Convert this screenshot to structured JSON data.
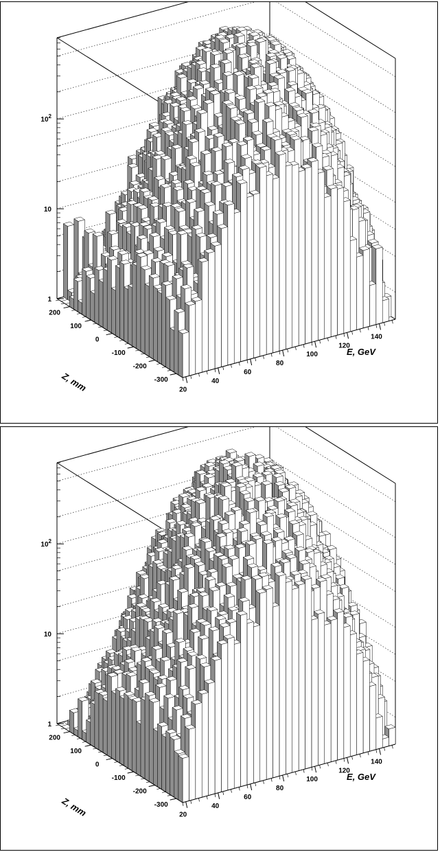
{
  "chart_data": [
    {
      "type": "lego3d",
      "x_axis": {
        "label": "E, GeV",
        "ticks": [
          "20",
          "40",
          "60",
          "80",
          "100",
          "120",
          "140"
        ],
        "range": [
          18,
          150
        ]
      },
      "y_axis": {
        "label": "Z, mm",
        "ticks": [
          "-300",
          "-200",
          "-100",
          "0",
          "100",
          "200"
        ],
        "range": [
          -330,
          260
        ]
      },
      "z_axis": {
        "scale": "log",
        "ticks": [
          "1",
          "10",
          "10 2"
        ],
        "range": [
          1,
          800
        ]
      },
      "grid": true,
      "variant": "with-halo",
      "z_peak_ridge_slope": -1.9,
      "noise_fraction": 0.55
    },
    {
      "type": "lego3d",
      "x_axis": {
        "label": "E, GeV",
        "ticks": [
          "20",
          "40",
          "60",
          "80",
          "100",
          "120",
          "140"
        ],
        "range": [
          18,
          150
        ]
      },
      "y_axis": {
        "label": "Z, mm",
        "ticks": [
          "-300",
          "-200",
          "-100",
          "0",
          "100",
          "200"
        ],
        "range": [
          -330,
          260
        ]
      },
      "z_axis": {
        "scale": "log",
        "ticks": [
          "1",
          "10",
          "10 2"
        ],
        "range": [
          1,
          800
        ]
      },
      "grid": true,
      "variant": "clean",
      "z_peak_ridge_slope": -1.9,
      "noise_fraction": 0.04
    }
  ]
}
